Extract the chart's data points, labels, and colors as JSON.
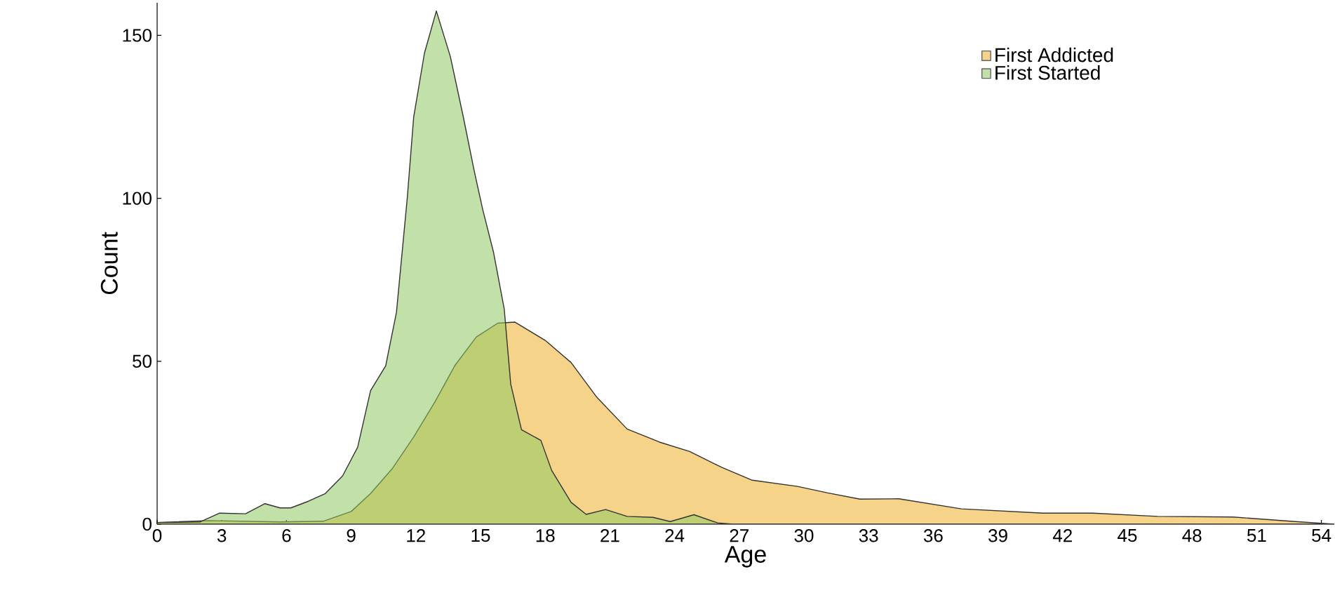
{
  "chart_data": {
    "type": "area",
    "xlabel": "Age",
    "ylabel": "Count",
    "xlim": [
      0,
      54.6
    ],
    "ylim": [
      0,
      160
    ],
    "xticks": [
      0,
      3,
      6,
      9,
      12,
      15,
      18,
      21,
      24,
      27,
      30,
      33,
      36,
      39,
      42,
      45,
      48,
      51,
      54
    ],
    "yticks": [
      0,
      50,
      100,
      150
    ],
    "legend": "top right",
    "grid": false,
    "series": [
      {
        "name": "First Addicted",
        "color": "#f5d48a",
        "x": [
          0,
          2.4,
          5.7,
          7.7,
          9,
          9.9,
          10.9,
          11.9,
          12.9,
          13.8,
          14.8,
          15.8,
          16.6,
          18,
          19.2,
          20.4,
          21.8,
          23.3,
          24.7,
          26.2,
          27.6,
          29.7,
          31.1,
          32.6,
          34.4,
          37.3,
          41.1,
          43.4,
          46.4,
          49.9,
          52.8,
          54.6
        ],
        "values": [
          0.5,
          1.1,
          0.7,
          0.9,
          3.9,
          9.4,
          17,
          26.8,
          37.7,
          48.6,
          57.4,
          61.7,
          62,
          56.4,
          49.6,
          38.9,
          29.2,
          25.2,
          22.3,
          17.4,
          13.5,
          11.6,
          9.6,
          7.7,
          7.8,
          4.7,
          3.4,
          3.4,
          2.4,
          2.2,
          0.8,
          0
        ]
      },
      {
        "name": "First Started",
        "color": "#8fc860",
        "x": [
          0,
          2,
          2.9,
          4.1,
          5,
          5.7,
          6.2,
          7,
          7.8,
          8.6,
          9.3,
          9.9,
          10.6,
          11.1,
          11.6,
          11.9,
          12.4,
          12.95,
          13.6,
          14.2,
          14.7,
          15.1,
          15.6,
          16.1,
          16.4,
          16.9,
          17.8,
          18.3,
          19.2,
          19.9,
          20.8,
          21.8,
          23,
          23.8,
          24.9,
          26,
          26.7,
          35,
          45,
          54.6
        ],
        "values": [
          0.5,
          0.7,
          3.4,
          3.2,
          6.3,
          5,
          5,
          7,
          9.4,
          14.8,
          23.6,
          41,
          48.6,
          65,
          100,
          125,
          144.6,
          157.5,
          143.5,
          125,
          108.6,
          96.6,
          83.5,
          66,
          43,
          29,
          25.7,
          16.5,
          6.7,
          3,
          4.5,
          2.4,
          2.1,
          0.8,
          2.9,
          0.4,
          0,
          0,
          0,
          0
        ]
      }
    ]
  }
}
